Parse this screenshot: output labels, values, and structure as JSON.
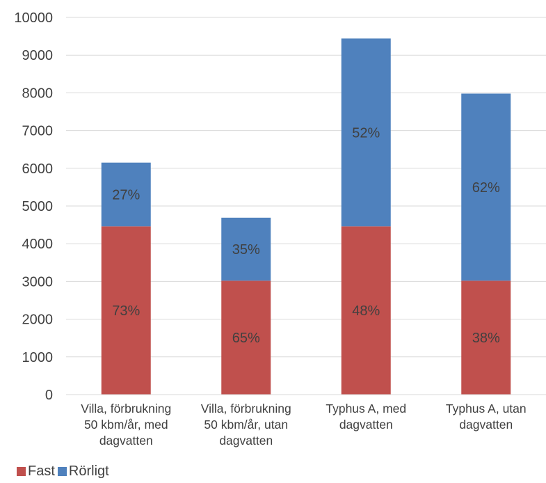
{
  "chart_data": {
    "type": "bar",
    "stacked": true,
    "categories": [
      [
        "Villa, förbrukning",
        "50 kbm/år, med",
        "dagvatten"
      ],
      [
        "Villa, förbrukning",
        "50 kbm/år, utan",
        "dagvatten"
      ],
      [
        "Typhus A, med",
        "dagvatten"
      ],
      [
        "Typhus A, utan",
        "dagvatten"
      ]
    ],
    "series": [
      {
        "name": "Fast",
        "color": "#c0504d",
        "values": [
          4460,
          3020,
          4460,
          3020
        ],
        "labels": [
          "73%",
          "65%",
          "48%",
          "38%"
        ]
      },
      {
        "name": "Rörligt",
        "color": "#4f81bd",
        "values": [
          1690,
          1670,
          4980,
          4960
        ],
        "labels": [
          "27%",
          "35%",
          "52%",
          "62%"
        ]
      }
    ],
    "ylim": [
      0,
      10000
    ],
    "yticks": [
      "0",
      "1000",
      "2000",
      "3000",
      "4000",
      "5000",
      "6000",
      "7000",
      "8000",
      "9000",
      "10000"
    ],
    "grid": true,
    "legend_position": "bottom-left"
  }
}
